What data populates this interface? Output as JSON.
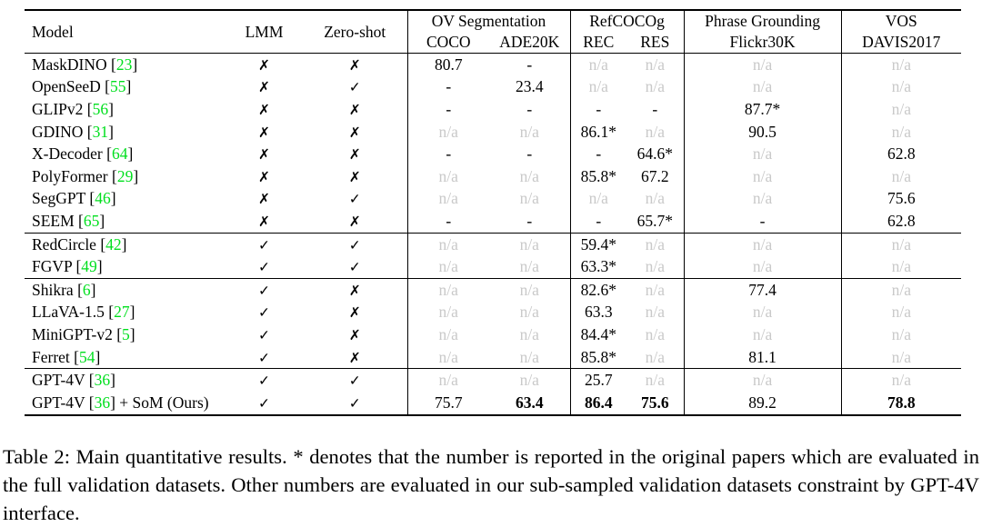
{
  "glyphs": {
    "check": "✓",
    "cross": "✗"
  },
  "colors": {
    "citation_green": "#00df1e",
    "na_gray": "#c9c9c9"
  },
  "table": {
    "header": {
      "model": "Model",
      "lmm": "LMM",
      "zero_shot": "Zero-shot",
      "groups": [
        {
          "title": "OV Segmentation",
          "cols": [
            "COCO",
            "ADE20K"
          ]
        },
        {
          "title": "RefCOCOg",
          "cols": [
            "REC",
            "RES"
          ]
        },
        {
          "title": "Phrase Grounding",
          "cols": [
            "Flickr30K"
          ]
        },
        {
          "title": "VOS",
          "cols": [
            "DAVIS2017"
          ]
        }
      ]
    },
    "row_groups": [
      {
        "rows": [
          {
            "model": "MaskDINO",
            "cite": "23",
            "suffix": "",
            "lmm": false,
            "zero_shot": false,
            "cells": [
              {
                "t": "80.7"
              },
              {
                "t": "-"
              },
              {
                "t": "n/a"
              },
              {
                "t": "n/a"
              },
              {
                "t": "n/a"
              },
              {
                "t": "n/a"
              }
            ]
          },
          {
            "model": "OpenSeeD",
            "cite": "55",
            "suffix": "",
            "lmm": false,
            "zero_shot": true,
            "cells": [
              {
                "t": "-"
              },
              {
                "t": "23.4"
              },
              {
                "t": "n/a"
              },
              {
                "t": "n/a"
              },
              {
                "t": "n/a"
              },
              {
                "t": "n/a"
              }
            ]
          },
          {
            "model": "GLIPv2",
            "cite": "56",
            "suffix": "",
            "lmm": false,
            "zero_shot": false,
            "cells": [
              {
                "t": "-"
              },
              {
                "t": "-"
              },
              {
                "t": "-"
              },
              {
                "t": "-"
              },
              {
                "t": "87.7*"
              },
              {
                "t": "n/a"
              }
            ]
          },
          {
            "model": "GDINO",
            "cite": "31",
            "suffix": "",
            "lmm": false,
            "zero_shot": false,
            "cells": [
              {
                "t": "n/a"
              },
              {
                "t": "n/a"
              },
              {
                "t": "86.1*"
              },
              {
                "t": "n/a"
              },
              {
                "t": "90.5"
              },
              {
                "t": "n/a"
              }
            ]
          },
          {
            "model": "X-Decoder",
            "cite": "64",
            "suffix": "",
            "lmm": false,
            "zero_shot": false,
            "cells": [
              {
                "t": "-"
              },
              {
                "t": "-"
              },
              {
                "t": "-"
              },
              {
                "t": "64.6*"
              },
              {
                "t": "n/a"
              },
              {
                "t": "62.8"
              }
            ]
          },
          {
            "model": "PolyFormer",
            "cite": "29",
            "suffix": "",
            "lmm": false,
            "zero_shot": false,
            "cells": [
              {
                "t": "n/a"
              },
              {
                "t": "n/a"
              },
              {
                "t": "85.8*"
              },
              {
                "t": "67.2"
              },
              {
                "t": "n/a"
              },
              {
                "t": "n/a"
              }
            ]
          },
          {
            "model": "SegGPT",
            "cite": "46",
            "suffix": "",
            "lmm": false,
            "zero_shot": true,
            "cells": [
              {
                "t": "n/a"
              },
              {
                "t": "n/a"
              },
              {
                "t": "n/a"
              },
              {
                "t": "n/a"
              },
              {
                "t": "n/a"
              },
              {
                "t": "75.6"
              }
            ]
          },
          {
            "model": "SEEM",
            "cite": "65",
            "suffix": "",
            "lmm": false,
            "zero_shot": false,
            "cells": [
              {
                "t": "-"
              },
              {
                "t": "-"
              },
              {
                "t": "-"
              },
              {
                "t": "65.7*"
              },
              {
                "t": "-"
              },
              {
                "t": "62.8"
              }
            ]
          }
        ]
      },
      {
        "rows": [
          {
            "model": "RedCircle",
            "cite": "42",
            "suffix": "",
            "lmm": true,
            "zero_shot": true,
            "cells": [
              {
                "t": "n/a"
              },
              {
                "t": "n/a"
              },
              {
                "t": "59.4*"
              },
              {
                "t": "n/a"
              },
              {
                "t": "n/a"
              },
              {
                "t": "n/a"
              }
            ]
          },
          {
            "model": "FGVP",
            "cite": "49",
            "suffix": "",
            "lmm": true,
            "zero_shot": true,
            "cells": [
              {
                "t": "n/a"
              },
              {
                "t": "n/a"
              },
              {
                "t": "63.3*"
              },
              {
                "t": "n/a"
              },
              {
                "t": "n/a"
              },
              {
                "t": "n/a"
              }
            ]
          }
        ]
      },
      {
        "rows": [
          {
            "model": "Shikra",
            "cite": "6",
            "suffix": "",
            "lmm": true,
            "zero_shot": false,
            "cells": [
              {
                "t": "n/a"
              },
              {
                "t": "n/a"
              },
              {
                "t": "82.6*"
              },
              {
                "t": "n/a"
              },
              {
                "t": "77.4"
              },
              {
                "t": "n/a"
              }
            ]
          },
          {
            "model": "LLaVA-1.5",
            "cite": "27",
            "suffix": "",
            "lmm": true,
            "zero_shot": false,
            "cells": [
              {
                "t": "n/a"
              },
              {
                "t": "n/a"
              },
              {
                "t": "63.3"
              },
              {
                "t": "n/a"
              },
              {
                "t": "n/a"
              },
              {
                "t": "n/a"
              }
            ]
          },
          {
            "model": "MiniGPT-v2",
            "cite": "5",
            "suffix": "",
            "lmm": true,
            "zero_shot": false,
            "cells": [
              {
                "t": "n/a"
              },
              {
                "t": "n/a"
              },
              {
                "t": "84.4*"
              },
              {
                "t": "n/a"
              },
              {
                "t": "n/a"
              },
              {
                "t": "n/a"
              }
            ]
          },
          {
            "model": "Ferret",
            "cite": "54",
            "suffix": "",
            "lmm": true,
            "zero_shot": false,
            "cells": [
              {
                "t": "n/a"
              },
              {
                "t": "n/a"
              },
              {
                "t": "85.8*"
              },
              {
                "t": "n/a"
              },
              {
                "t": "81.1"
              },
              {
                "t": "n/a"
              }
            ]
          }
        ]
      },
      {
        "rows": [
          {
            "model": "GPT-4V",
            "cite": "36",
            "suffix": "",
            "lmm": true,
            "zero_shot": true,
            "cells": [
              {
                "t": "n/a"
              },
              {
                "t": "n/a"
              },
              {
                "t": "25.7"
              },
              {
                "t": "n/a"
              },
              {
                "t": "n/a"
              },
              {
                "t": "n/a"
              }
            ]
          },
          {
            "model": "GPT-4V",
            "cite": "36",
            "suffix": " + SoM (Ours)",
            "lmm": true,
            "zero_shot": true,
            "cells": [
              {
                "t": "75.7"
              },
              {
                "t": "63.4",
                "b": true
              },
              {
                "t": "86.4",
                "b": true
              },
              {
                "t": "75.6",
                "b": true
              },
              {
                "t": "89.2"
              },
              {
                "t": "78.8",
                "b": true
              }
            ]
          }
        ]
      }
    ]
  },
  "caption": {
    "text": "Table 2: Main quantitative results.  * denotes that the number is reported in the original papers which are evaluated in the full validation datasets. Other numbers are evaluated in our sub-sampled validation datasets constraint by GPT-4V interface."
  }
}
